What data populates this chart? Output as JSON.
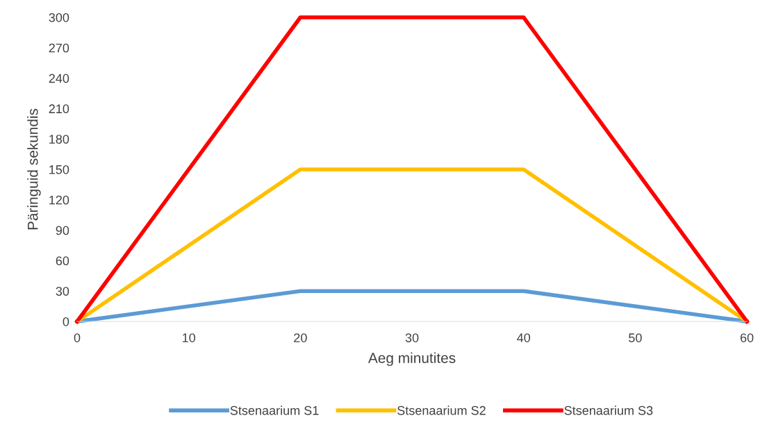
{
  "chart_data": {
    "type": "line",
    "xlabel": "Aeg minutites",
    "ylabel": "Päringuid sekundis",
    "x": [
      0,
      20,
      40,
      60
    ],
    "series": [
      {
        "name": "Stsenaarium S1",
        "color": "#5b9bd5",
        "values": [
          0,
          30,
          30,
          0
        ]
      },
      {
        "name": "Stsenaarium S2",
        "color": "#ffc000",
        "values": [
          0,
          150,
          150,
          0
        ]
      },
      {
        "name": "Stsenaarium S3",
        "color": "#ff0000",
        "values": [
          0,
          300,
          300,
          0
        ]
      }
    ],
    "xlim": [
      0,
      60
    ],
    "xticks": [
      0,
      10,
      20,
      30,
      40,
      50,
      60
    ],
    "ylim": [
      0,
      300
    ],
    "yticks": [
      0,
      30,
      60,
      90,
      120,
      150,
      180,
      210,
      240,
      270,
      300
    ],
    "grid": false,
    "legend": "bottom",
    "marker": "none",
    "line_style": "solid"
  }
}
